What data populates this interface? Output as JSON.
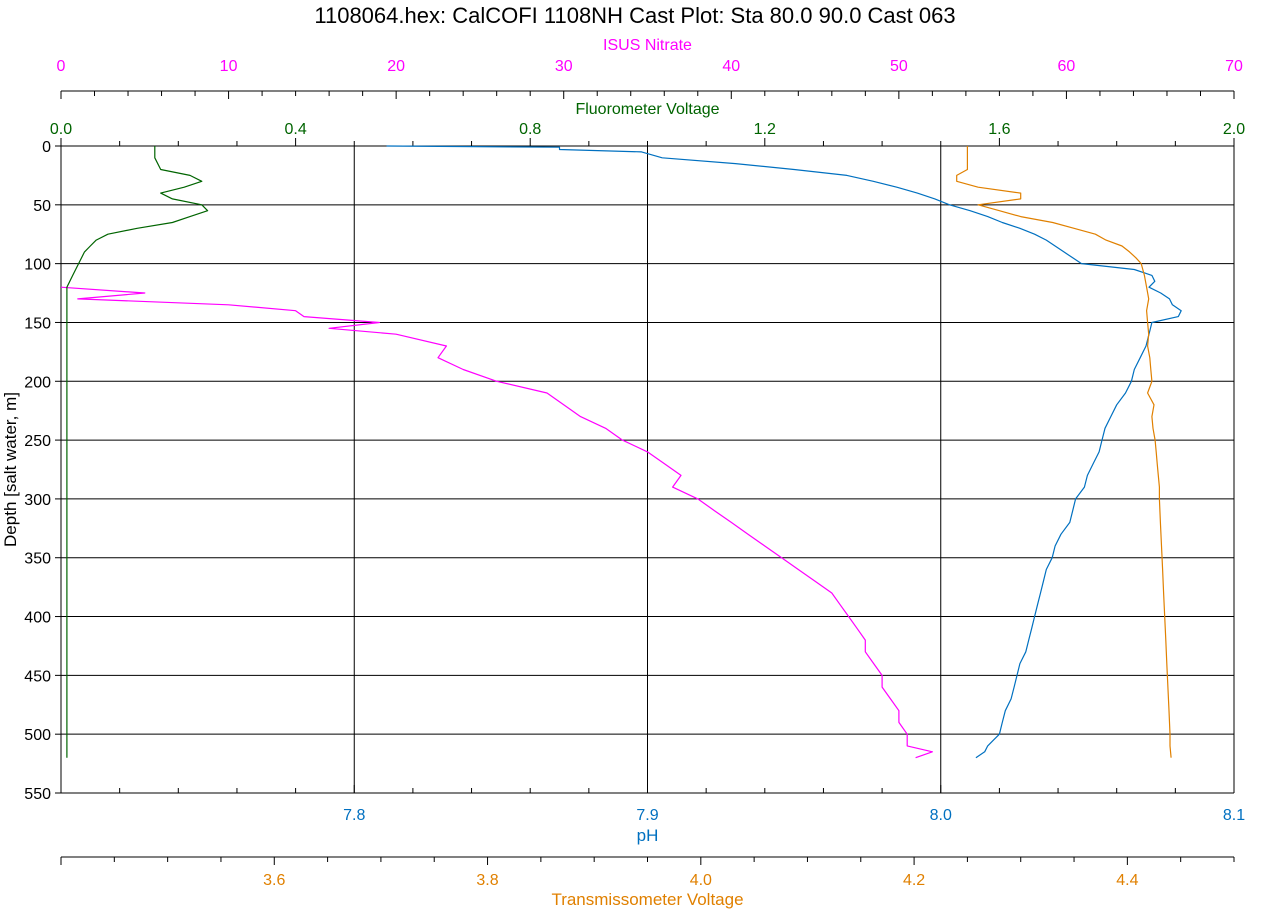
{
  "chart_data": {
    "type": "line",
    "title": "1108064.hex: CalCOFI 1108NH Cast Plot: Sta 80.0 90.0 Cast 063",
    "grid": true,
    "colors": {
      "nitrate": "#ff00ff",
      "fluorometer": "#006400",
      "ph": "#0070c0",
      "transmissometer": "#e08000",
      "grid": "#000000"
    },
    "axes": {
      "depth": {
        "label": "Depth [salt water, m]",
        "ylim": [
          0,
          550
        ],
        "ticks": [
          "0",
          "50",
          "100",
          "150",
          "200",
          "250",
          "300",
          "350",
          "400",
          "450",
          "500",
          "550"
        ]
      },
      "nitrate": {
        "label": "ISUS Nitrate",
        "xlim": [
          0,
          70
        ],
        "ticks": [
          "0",
          "10",
          "20",
          "30",
          "40",
          "50",
          "60",
          "70"
        ]
      },
      "fluorometer": {
        "label": "Fluorometer Voltage",
        "xlim": [
          0.0,
          2.0
        ],
        "ticks": [
          "0.0",
          "0.4",
          "0.8",
          "1.2",
          "1.6",
          "2.0"
        ]
      },
      "ph": {
        "label": "pH",
        "xlim": [
          7.7,
          8.1
        ],
        "ticks": [
          "7.8",
          "7.9",
          "8.0",
          "8.1"
        ]
      },
      "transmissometer": {
        "label": "Transmissometer Voltage",
        "xlim": [
          3.4,
          4.5
        ],
        "ticks": [
          "3.6",
          "3.8",
          "4.0",
          "4.2",
          "4.4"
        ]
      }
    },
    "series": [
      {
        "name": "ISUS Nitrate",
        "axis": "nitrate",
        "points": [
          [
            120,
            0
          ],
          [
            125,
            5
          ],
          [
            130,
            1
          ],
          [
            135,
            10
          ],
          [
            140,
            14
          ],
          [
            145,
            14.5
          ],
          [
            150,
            19
          ],
          [
            155,
            16
          ],
          [
            160,
            20
          ],
          [
            170,
            23
          ],
          [
            180,
            22.5
          ],
          [
            190,
            24
          ],
          [
            200,
            26
          ],
          [
            210,
            29
          ],
          [
            220,
            30
          ],
          [
            230,
            31
          ],
          [
            240,
            32.5
          ],
          [
            250,
            33.5
          ],
          [
            260,
            35
          ],
          [
            270,
            36
          ],
          [
            280,
            37
          ],
          [
            290,
            36.5
          ],
          [
            300,
            38
          ],
          [
            310,
            39
          ],
          [
            320,
            40
          ],
          [
            330,
            41
          ],
          [
            340,
            42
          ],
          [
            350,
            43
          ],
          [
            360,
            44
          ],
          [
            370,
            45
          ],
          [
            380,
            46
          ],
          [
            390,
            46.5
          ],
          [
            400,
            47
          ],
          [
            410,
            47.5
          ],
          [
            420,
            48
          ],
          [
            430,
            48
          ],
          [
            440,
            48.5
          ],
          [
            450,
            49
          ],
          [
            460,
            49
          ],
          [
            470,
            49.5
          ],
          [
            480,
            50
          ],
          [
            490,
            50
          ],
          [
            500,
            50.5
          ],
          [
            510,
            50.5
          ],
          [
            515,
            52
          ],
          [
            520,
            51
          ]
        ]
      },
      {
        "name": "Fluorometer Voltage",
        "axis": "fluorometer",
        "points": [
          [
            0,
            0.16
          ],
          [
            10,
            0.16
          ],
          [
            20,
            0.17
          ],
          [
            25,
            0.22
          ],
          [
            30,
            0.24
          ],
          [
            35,
            0.21
          ],
          [
            40,
            0.17
          ],
          [
            45,
            0.19
          ],
          [
            50,
            0.24
          ],
          [
            55,
            0.25
          ],
          [
            60,
            0.22
          ],
          [
            65,
            0.19
          ],
          [
            70,
            0.13
          ],
          [
            75,
            0.08
          ],
          [
            80,
            0.06
          ],
          [
            85,
            0.05
          ],
          [
            90,
            0.04
          ],
          [
            100,
            0.03
          ],
          [
            110,
            0.02
          ],
          [
            120,
            0.01
          ],
          [
            130,
            0.01
          ],
          [
            140,
            0.01
          ],
          [
            150,
            0.01
          ],
          [
            200,
            0.01
          ],
          [
            250,
            0.01
          ],
          [
            300,
            0.01
          ],
          [
            350,
            0.01
          ],
          [
            400,
            0.01
          ],
          [
            450,
            0.01
          ],
          [
            500,
            0.01
          ],
          [
            520,
            0.01
          ]
        ]
      },
      {
        "name": "pH",
        "axis": "ph",
        "points": [
          [
            0,
            7.811
          ],
          [
            1,
            7.87
          ],
          [
            3,
            7.87
          ],
          [
            5,
            7.898
          ],
          [
            10,
            7.905
          ],
          [
            15,
            7.93
          ],
          [
            20,
            7.95
          ],
          [
            25,
            7.968
          ],
          [
            30,
            7.977
          ],
          [
            35,
            7.985
          ],
          [
            40,
            7.992
          ],
          [
            45,
            7.998
          ],
          [
            50,
            8.003
          ],
          [
            55,
            8.01
          ],
          [
            60,
            8.016
          ],
          [
            65,
            8.021
          ],
          [
            70,
            8.027
          ],
          [
            75,
            8.032
          ],
          [
            80,
            8.036
          ],
          [
            85,
            8.039
          ],
          [
            90,
            8.042
          ],
          [
            95,
            8.045
          ],
          [
            100,
            8.048
          ],
          [
            105,
            8.066
          ],
          [
            110,
            8.072
          ],
          [
            115,
            8.073
          ],
          [
            120,
            8.071
          ],
          [
            125,
            8.075
          ],
          [
            130,
            8.078
          ],
          [
            135,
            8.079
          ],
          [
            140,
            8.082
          ],
          [
            145,
            8.081
          ],
          [
            150,
            8.072
          ],
          [
            160,
            8.071
          ],
          [
            170,
            8.07
          ],
          [
            180,
            8.068
          ],
          [
            190,
            8.066
          ],
          [
            200,
            8.065
          ],
          [
            210,
            8.063
          ],
          [
            220,
            8.06
          ],
          [
            230,
            8.058
          ],
          [
            240,
            8.056
          ],
          [
            250,
            8.055
          ],
          [
            260,
            8.054
          ],
          [
            270,
            8.052
          ],
          [
            280,
            8.05
          ],
          [
            290,
            8.049
          ],
          [
            300,
            8.046
          ],
          [
            310,
            8.045
          ],
          [
            320,
            8.044
          ],
          [
            330,
            8.041
          ],
          [
            340,
            8.039
          ],
          [
            350,
            8.038
          ],
          [
            360,
            8.036
          ],
          [
            370,
            8.035
          ],
          [
            380,
            8.034
          ],
          [
            390,
            8.033
          ],
          [
            400,
            8.032
          ],
          [
            410,
            8.031
          ],
          [
            420,
            8.03
          ],
          [
            430,
            8.029
          ],
          [
            440,
            8.027
          ],
          [
            450,
            8.026
          ],
          [
            460,
            8.025
          ],
          [
            470,
            8.024
          ],
          [
            480,
            8.022
          ],
          [
            490,
            8.021
          ],
          [
            500,
            8.02
          ],
          [
            505,
            8.018
          ],
          [
            510,
            8.016
          ],
          [
            515,
            8.015
          ],
          [
            520,
            8.012
          ]
        ]
      },
      {
        "name": "Transmissometer Voltage",
        "axis": "transmissometer",
        "points": [
          [
            0,
            4.25
          ],
          [
            10,
            4.25
          ],
          [
            20,
            4.25
          ],
          [
            25,
            4.24
          ],
          [
            30,
            4.24
          ],
          [
            35,
            4.26
          ],
          [
            40,
            4.3
          ],
          [
            45,
            4.3
          ],
          [
            50,
            4.26
          ],
          [
            55,
            4.28
          ],
          [
            60,
            4.3
          ],
          [
            65,
            4.33
          ],
          [
            70,
            4.35
          ],
          [
            75,
            4.37
          ],
          [
            80,
            4.38
          ],
          [
            85,
            4.395
          ],
          [
            90,
            4.402
          ],
          [
            95,
            4.408
          ],
          [
            100,
            4.413
          ],
          [
            110,
            4.416
          ],
          [
            120,
            4.418
          ],
          [
            130,
            4.42
          ],
          [
            140,
            4.418
          ],
          [
            150,
            4.419
          ],
          [
            160,
            4.42
          ],
          [
            170,
            4.419
          ],
          [
            180,
            4.421
          ],
          [
            190,
            4.422
          ],
          [
            200,
            4.423
          ],
          [
            210,
            4.419
          ],
          [
            220,
            4.425
          ],
          [
            230,
            4.423
          ],
          [
            240,
            4.424
          ],
          [
            250,
            4.426
          ],
          [
            260,
            4.427
          ],
          [
            270,
            4.428
          ],
          [
            280,
            4.429
          ],
          [
            290,
            4.43
          ],
          [
            300,
            4.43
          ],
          [
            320,
            4.431
          ],
          [
            340,
            4.432
          ],
          [
            360,
            4.433
          ],
          [
            380,
            4.434
          ],
          [
            400,
            4.435
          ],
          [
            420,
            4.436
          ],
          [
            440,
            4.437
          ],
          [
            460,
            4.438
          ],
          [
            480,
            4.439
          ],
          [
            500,
            4.44
          ],
          [
            510,
            4.44
          ],
          [
            520,
            4.441
          ]
        ]
      }
    ]
  }
}
